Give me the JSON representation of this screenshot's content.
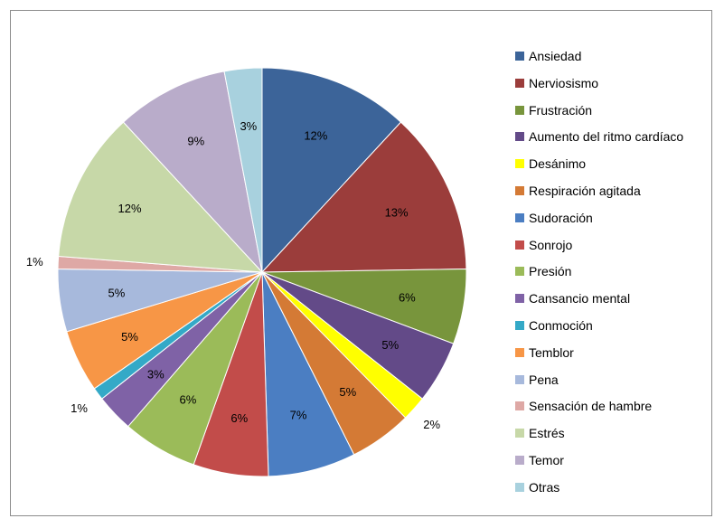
{
  "chart_data": {
    "type": "pie",
    "title": "",
    "categories": [
      "Ansiedad",
      "Nerviosismo",
      "Frustración",
      "Aumento del ritmo cardíaco",
      "Desánimo",
      "Respiración agitada",
      "Sudoración",
      "Sonrojo",
      "Presión",
      "Cansancio mental",
      "Conmoción",
      "Temblor",
      "Pena",
      "Sensación de hambre",
      "Estrés",
      "Temor",
      "Otras"
    ],
    "values": [
      12,
      13,
      6,
      5,
      2,
      5,
      7,
      6,
      6,
      3,
      1,
      5,
      5,
      1,
      12,
      9,
      3
    ],
    "labels": [
      "12%",
      "13%",
      "6%",
      "5%",
      "2%",
      "5%",
      "7%",
      "6%",
      "6%",
      "3%",
      "1%",
      "5%",
      "5%",
      "1%",
      "12%",
      "9%",
      "3%"
    ],
    "colors": [
      "#3c6499",
      "#9b3d3b",
      "#78953c",
      "#634a88",
      "#ffff00",
      "#d47a35",
      "#4b7ec2",
      "#c24c4a",
      "#9bbb59",
      "#7f62a6",
      "#34a9c7",
      "#f79646",
      "#a7b9dc",
      "#dea8a5",
      "#c7d8a8",
      "#b9acca",
      "#a8d1de"
    ],
    "legend_position": "right"
  }
}
